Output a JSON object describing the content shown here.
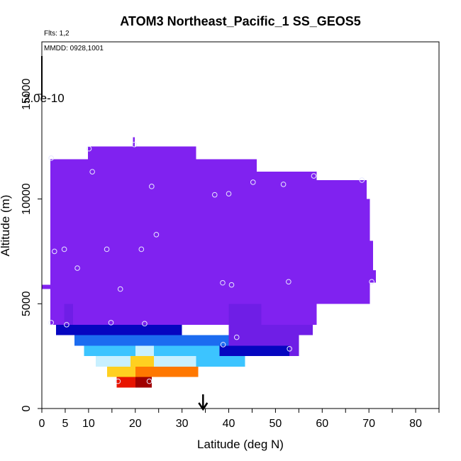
{
  "chart_data": {
    "type": "heatmap",
    "title": "ATOM3 Northeast_Pacific_1 SS_GEOS5",
    "annotations": {
      "flights": "Flts: 1,2",
      "dates": "MMDD: 0928,1001",
      "colorbar_scale_label": "2.0e-10"
    },
    "xlabel": "Latitude (deg N)",
    "ylabel": "Altitude (m)",
    "xlim": [
      0,
      85
    ],
    "ylim": [
      0,
      17500
    ],
    "x_ticks": [
      0,
      5,
      10,
      20,
      30,
      40,
      50,
      60,
      70,
      80
    ],
    "x_minor_ticks": [
      15,
      25,
      35,
      45,
      55,
      65,
      75,
      85
    ],
    "y_ticks": [
      0,
      5000,
      10000,
      15000
    ],
    "arrow_marker_latitude": 34.5,
    "colors": {
      "background_purple": "#8022f0",
      "dark_purple": "#6f1ee6",
      "navy": "#0606c0",
      "blue": "#1c6cf0",
      "sky": "#3cc4ff",
      "pale": "#c8f0ff",
      "yellow": "#ffd020",
      "orange": "#ff7800",
      "red": "#e81400",
      "dark_red": "#a00000",
      "marker": "#e8e8ff"
    },
    "cells": [
      {
        "x0": 1.8,
        "x1": 9.9,
        "y0": 11900,
        "y1": 4000,
        "color": "background_purple"
      },
      {
        "x0": 9.9,
        "x1": 33.0,
        "y0": 12500,
        "y1": 4000,
        "color": "background_purple"
      },
      {
        "x0": 19.5,
        "x1": 19.9,
        "y0": 12950,
        "y1": 12500,
        "color": "background_purple"
      },
      {
        "x0": 33.0,
        "x1": 46.0,
        "y0": 11900,
        "y1": 4000,
        "color": "background_purple"
      },
      {
        "x0": 46.0,
        "x1": 58.8,
        "y0": 11300,
        "y1": 4000,
        "color": "background_purple"
      },
      {
        "x0": 58.8,
        "x1": 69.5,
        "y0": 10900,
        "y1": 5000,
        "color": "background_purple"
      },
      {
        "x0": 69.5,
        "x1": 70.2,
        "y0": 10000,
        "y1": 5000,
        "color": "background_purple"
      },
      {
        "x0": 70.2,
        "x1": 70.9,
        "y0": 8000,
        "y1": 6000,
        "color": "background_purple"
      },
      {
        "x0": 70.9,
        "x1": 71.5,
        "y0": 6600,
        "y1": 6000,
        "color": "background_purple"
      },
      {
        "x0": 0.1,
        "x1": 1.8,
        "y0": 5900,
        "y1": 5700,
        "color": "background_purple"
      },
      {
        "x0": 4.8,
        "x1": 6.7,
        "y0": 5000,
        "y1": 4000,
        "color": "dark_purple"
      },
      {
        "x0": 40.0,
        "x1": 47.0,
        "y0": 5000,
        "y1": 4000,
        "color": "dark_purple"
      },
      {
        "x0": 3.0,
        "x1": 20.0,
        "y0": 4000,
        "y1": 3500,
        "color": "navy"
      },
      {
        "x0": 20.0,
        "x1": 30.0,
        "y0": 4000,
        "y1": 3500,
        "color": "navy"
      },
      {
        "x0": 40.0,
        "x1": 58.0,
        "y0": 4000,
        "y1": 3500,
        "color": "dark_purple"
      },
      {
        "x0": 40.0,
        "x1": 55.0,
        "y0": 3500,
        "y1": 2500,
        "color": "dark_purple"
      },
      {
        "x0": 7.0,
        "x1": 24.0,
        "y0": 3500,
        "y1": 3000,
        "color": "blue"
      },
      {
        "x0": 24.0,
        "x1": 40.0,
        "y0": 3500,
        "y1": 3000,
        "color": "blue"
      },
      {
        "x0": 9.0,
        "x1": 20.0,
        "y0": 3000,
        "y1": 2500,
        "color": "sky"
      },
      {
        "x0": 20.0,
        "x1": 24.0,
        "y0": 3000,
        "y1": 2500,
        "color": "pale"
      },
      {
        "x0": 24.0,
        "x1": 38.0,
        "y0": 3000,
        "y1": 2500,
        "color": "sky"
      },
      {
        "x0": 38.0,
        "x1": 53.0,
        "y0": 3000,
        "y1": 2500,
        "color": "navy"
      },
      {
        "x0": 11.5,
        "x1": 19.0,
        "y0": 2500,
        "y1": 2000,
        "color": "pale"
      },
      {
        "x0": 19.0,
        "x1": 24.0,
        "y0": 2500,
        "y1": 2000,
        "color": "yellow"
      },
      {
        "x0": 24.0,
        "x1": 33.0,
        "y0": 2500,
        "y1": 2000,
        "color": "pale"
      },
      {
        "x0": 33.0,
        "x1": 43.5,
        "y0": 2500,
        "y1": 2000,
        "color": "sky"
      },
      {
        "x0": 14.0,
        "x1": 20.0,
        "y0": 2000,
        "y1": 1500,
        "color": "yellow"
      },
      {
        "x0": 20.0,
        "x1": 26.0,
        "y0": 2000,
        "y1": 1500,
        "color": "orange"
      },
      {
        "x0": 26.0,
        "x1": 33.5,
        "y0": 2000,
        "y1": 1500,
        "color": "orange"
      },
      {
        "x0": 16.0,
        "x1": 20.0,
        "y0": 1500,
        "y1": 1000,
        "color": "red"
      },
      {
        "x0": 20.0,
        "x1": 23.5,
        "y0": 1500,
        "y1": 1000,
        "color": "dark_red"
      }
    ],
    "points": [
      {
        "x": 2.0,
        "y": 11950
      },
      {
        "x": 10.1,
        "y": 12400
      },
      {
        "x": 19.8,
        "y": 12600
      },
      {
        "x": 10.8,
        "y": 11300
      },
      {
        "x": 23.5,
        "y": 10600
      },
      {
        "x": 37.0,
        "y": 10200
      },
      {
        "x": 40.0,
        "y": 10250
      },
      {
        "x": 45.2,
        "y": 10800
      },
      {
        "x": 51.7,
        "y": 10700
      },
      {
        "x": 58.2,
        "y": 11100
      },
      {
        "x": 68.5,
        "y": 10900
      },
      {
        "x": 24.5,
        "y": 8300
      },
      {
        "x": 2.7,
        "y": 7500
      },
      {
        "x": 4.8,
        "y": 7600
      },
      {
        "x": 13.9,
        "y": 7600
      },
      {
        "x": 21.3,
        "y": 7600
      },
      {
        "x": 7.6,
        "y": 6700
      },
      {
        "x": 16.8,
        "y": 5700
      },
      {
        "x": 38.7,
        "y": 6000
      },
      {
        "x": 40.6,
        "y": 5900
      },
      {
        "x": 52.8,
        "y": 6050
      },
      {
        "x": 70.6,
        "y": 6050
      },
      {
        "x": 2.0,
        "y": 4100
      },
      {
        "x": 5.3,
        "y": 4000
      },
      {
        "x": 14.8,
        "y": 4100
      },
      {
        "x": 22.0,
        "y": 4050
      },
      {
        "x": 41.7,
        "y": 3400
      },
      {
        "x": 38.8,
        "y": 3050
      },
      {
        "x": 53.0,
        "y": 2850
      },
      {
        "x": 16.3,
        "y": 1300
      },
      {
        "x": 23.0,
        "y": 1300
      }
    ]
  }
}
